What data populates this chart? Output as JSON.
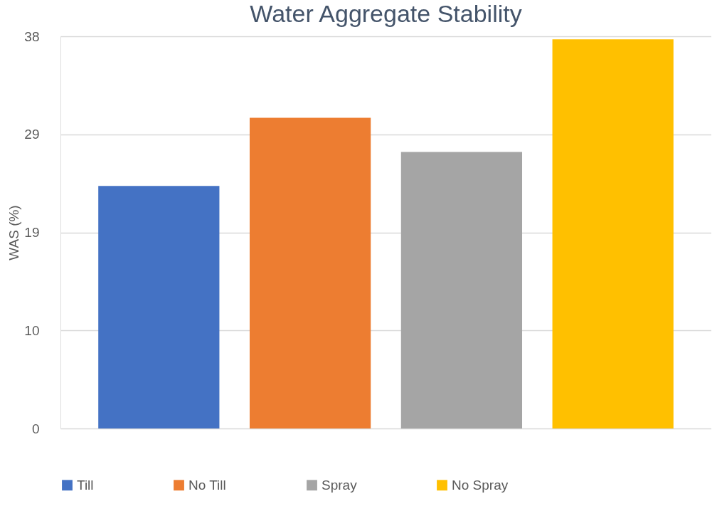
{
  "chart_data": {
    "type": "bar",
    "title": "Water Aggregate Stability",
    "ylabel": "WAS (%)",
    "categories": [
      null,
      null,
      null,
      null
    ],
    "series": [
      {
        "name": "Till",
        "color": "#4472c4",
        "values": [
          23.5,
          null,
          null,
          null
        ]
      },
      {
        "name": "No Till",
        "color": "#ed7d31",
        "values": [
          null,
          30.1,
          null,
          null
        ]
      },
      {
        "name": "Spray",
        "color": "#a5a5a5",
        "values": [
          null,
          null,
          26.8,
          null
        ]
      },
      {
        "name": "No Spray",
        "color": "#ffc000",
        "values": [
          null,
          null,
          null,
          37.7
        ]
      }
    ],
    "ylim": [
      0,
      38
    ],
    "yticks": [
      0,
      {
        "value": 9.5,
        "label": "10"
      },
      19,
      {
        "value": 28.5,
        "label": "29"
      },
      38
    ],
    "grid": "y",
    "legend": "bottom"
  }
}
